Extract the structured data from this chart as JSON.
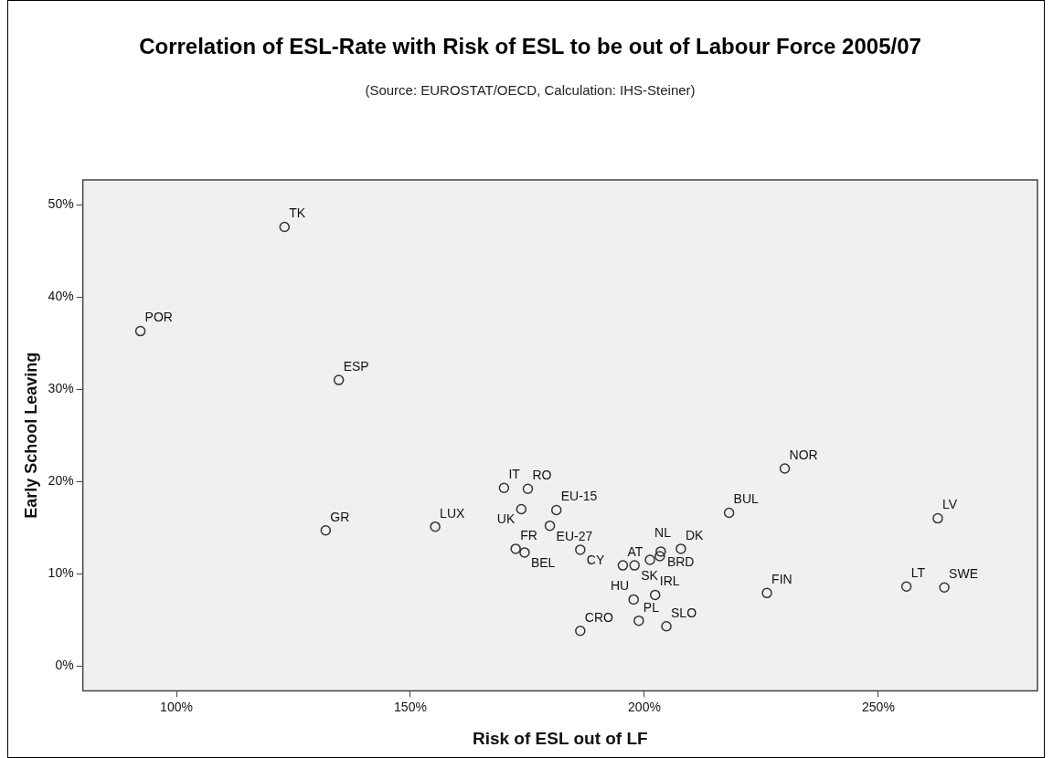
{
  "chart_data": {
    "type": "scatter",
    "title": "Correlation of ESL-Rate with Risk of ESL to be out of Labour Force 2005/07",
    "subtitle": "(Source: EUROSTAT/OECD, Calculation: IHS-Steiner)",
    "xlabel": "Risk of ESL out of LF",
    "ylabel": "Early School Leaving",
    "color": "#333333",
    "marker": "circle",
    "x": [
      123.1,
      92.3,
      134.7,
      131.9,
      155.3,
      170.0,
      175.1,
      173.7,
      181.2,
      179.8,
      172.5,
      174.4,
      186.3,
      195.4,
      197.9,
      201.2,
      203.3,
      203.5,
      207.8,
      197.7,
      202.3,
      198.8,
      204.7,
      186.3,
      218.1,
      230.0,
      262.7,
      226.2,
      256.0,
      264.1
    ],
    "values": [
      47.6,
      36.3,
      31.0,
      14.7,
      15.1,
      19.3,
      19.2,
      17.0,
      16.9,
      15.2,
      12.7,
      12.3,
      12.6,
      10.9,
      10.9,
      11.5,
      11.9,
      12.4,
      12.7,
      7.2,
      7.7,
      4.9,
      4.3,
      3.8,
      16.6,
      21.4,
      16.0,
      7.9,
      8.6,
      8.5
    ],
    "value_labels": [
      "TK",
      "POR",
      "ESP",
      "GR",
      "LUX",
      "IT",
      "RO",
      "UK",
      "EU-15",
      "EU-27",
      "FR",
      "BEL",
      "CY",
      "AT",
      "SK",
      "NL",
      null,
      "BRD",
      "DK",
      "HU",
      "IRL",
      "PL",
      "SLO",
      "CRO",
      "BUL",
      "NOR",
      "LV",
      "FIN",
      "LT",
      "SWE"
    ],
    "xlim": [
      80,
      284
    ],
    "ylim": [
      -2.7,
      52.7
    ],
    "xticks": [
      {
        "value": 100,
        "label": "100%"
      },
      {
        "value": 150,
        "label": "150%"
      },
      {
        "value": 200,
        "label": "200%"
      },
      {
        "value": 250,
        "label": "250%"
      }
    ],
    "yticks": [
      {
        "value": 0,
        "label": "0%"
      },
      {
        "value": 10,
        "label": "10%"
      },
      {
        "value": 20,
        "label": "20%"
      },
      {
        "value": 30,
        "label": "30%"
      },
      {
        "value": 40,
        "label": "40%"
      },
      {
        "value": 50,
        "label": "50%"
      }
    ],
    "grid": false
  }
}
